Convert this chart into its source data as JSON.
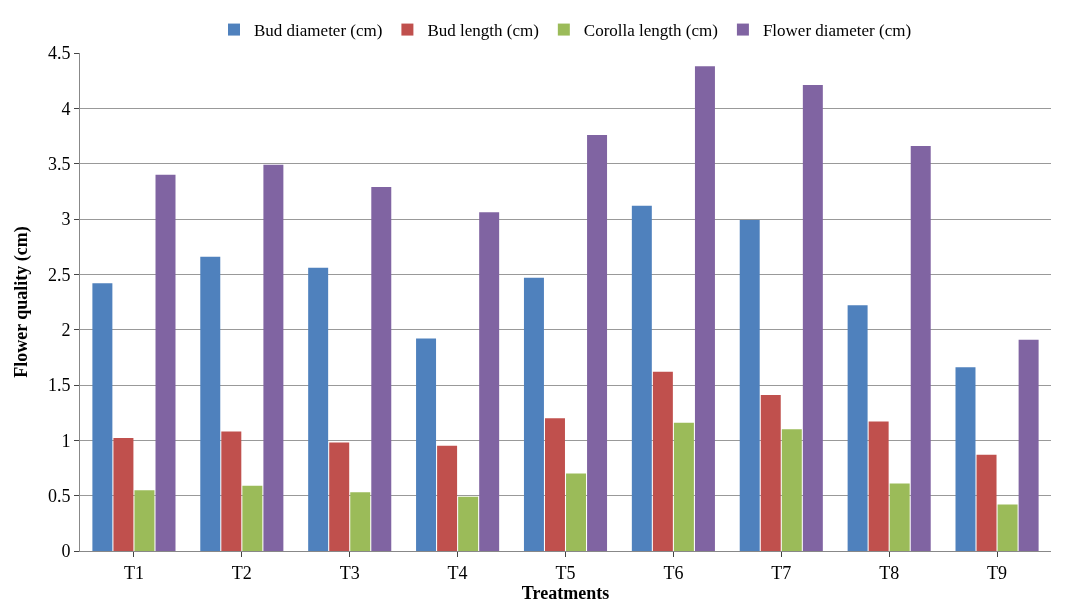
{
  "chart_data": {
    "type": "bar",
    "xlabel": "Treatments",
    "ylabel": "Flower quality (cm)",
    "categories": [
      "T1",
      "T2",
      "T3",
      "T4",
      "T5",
      "T6",
      "T7",
      "T8",
      "T9"
    ],
    "series": [
      {
        "name": "Bud diameter (cm)",
        "color": "#4f81bd",
        "values": [
          2.42,
          2.66,
          2.56,
          1.92,
          2.47,
          3.12,
          2.99,
          2.22,
          1.66
        ]
      },
      {
        "name": "Bud length (cm)",
        "color": "#c0504d",
        "values": [
          1.02,
          1.08,
          0.98,
          0.95,
          1.2,
          1.62,
          1.41,
          1.17,
          0.87
        ]
      },
      {
        "name": "Corolla length (cm)",
        "color": "#9bbb59",
        "values": [
          0.55,
          0.59,
          0.53,
          0.49,
          0.7,
          1.16,
          1.1,
          0.61,
          0.42
        ]
      },
      {
        "name": "Flower diameter (cm)",
        "color": "#8064a2",
        "values": [
          3.4,
          3.49,
          3.29,
          3.06,
          3.76,
          4.38,
          4.21,
          3.66,
          1.91
        ]
      }
    ],
    "ylim": [
      0,
      4.5
    ],
    "yticks": [
      0,
      0.5,
      1,
      1.5,
      2,
      2.5,
      3,
      3.5,
      4,
      4.5
    ],
    "grid": "y",
    "legend": "top"
  }
}
